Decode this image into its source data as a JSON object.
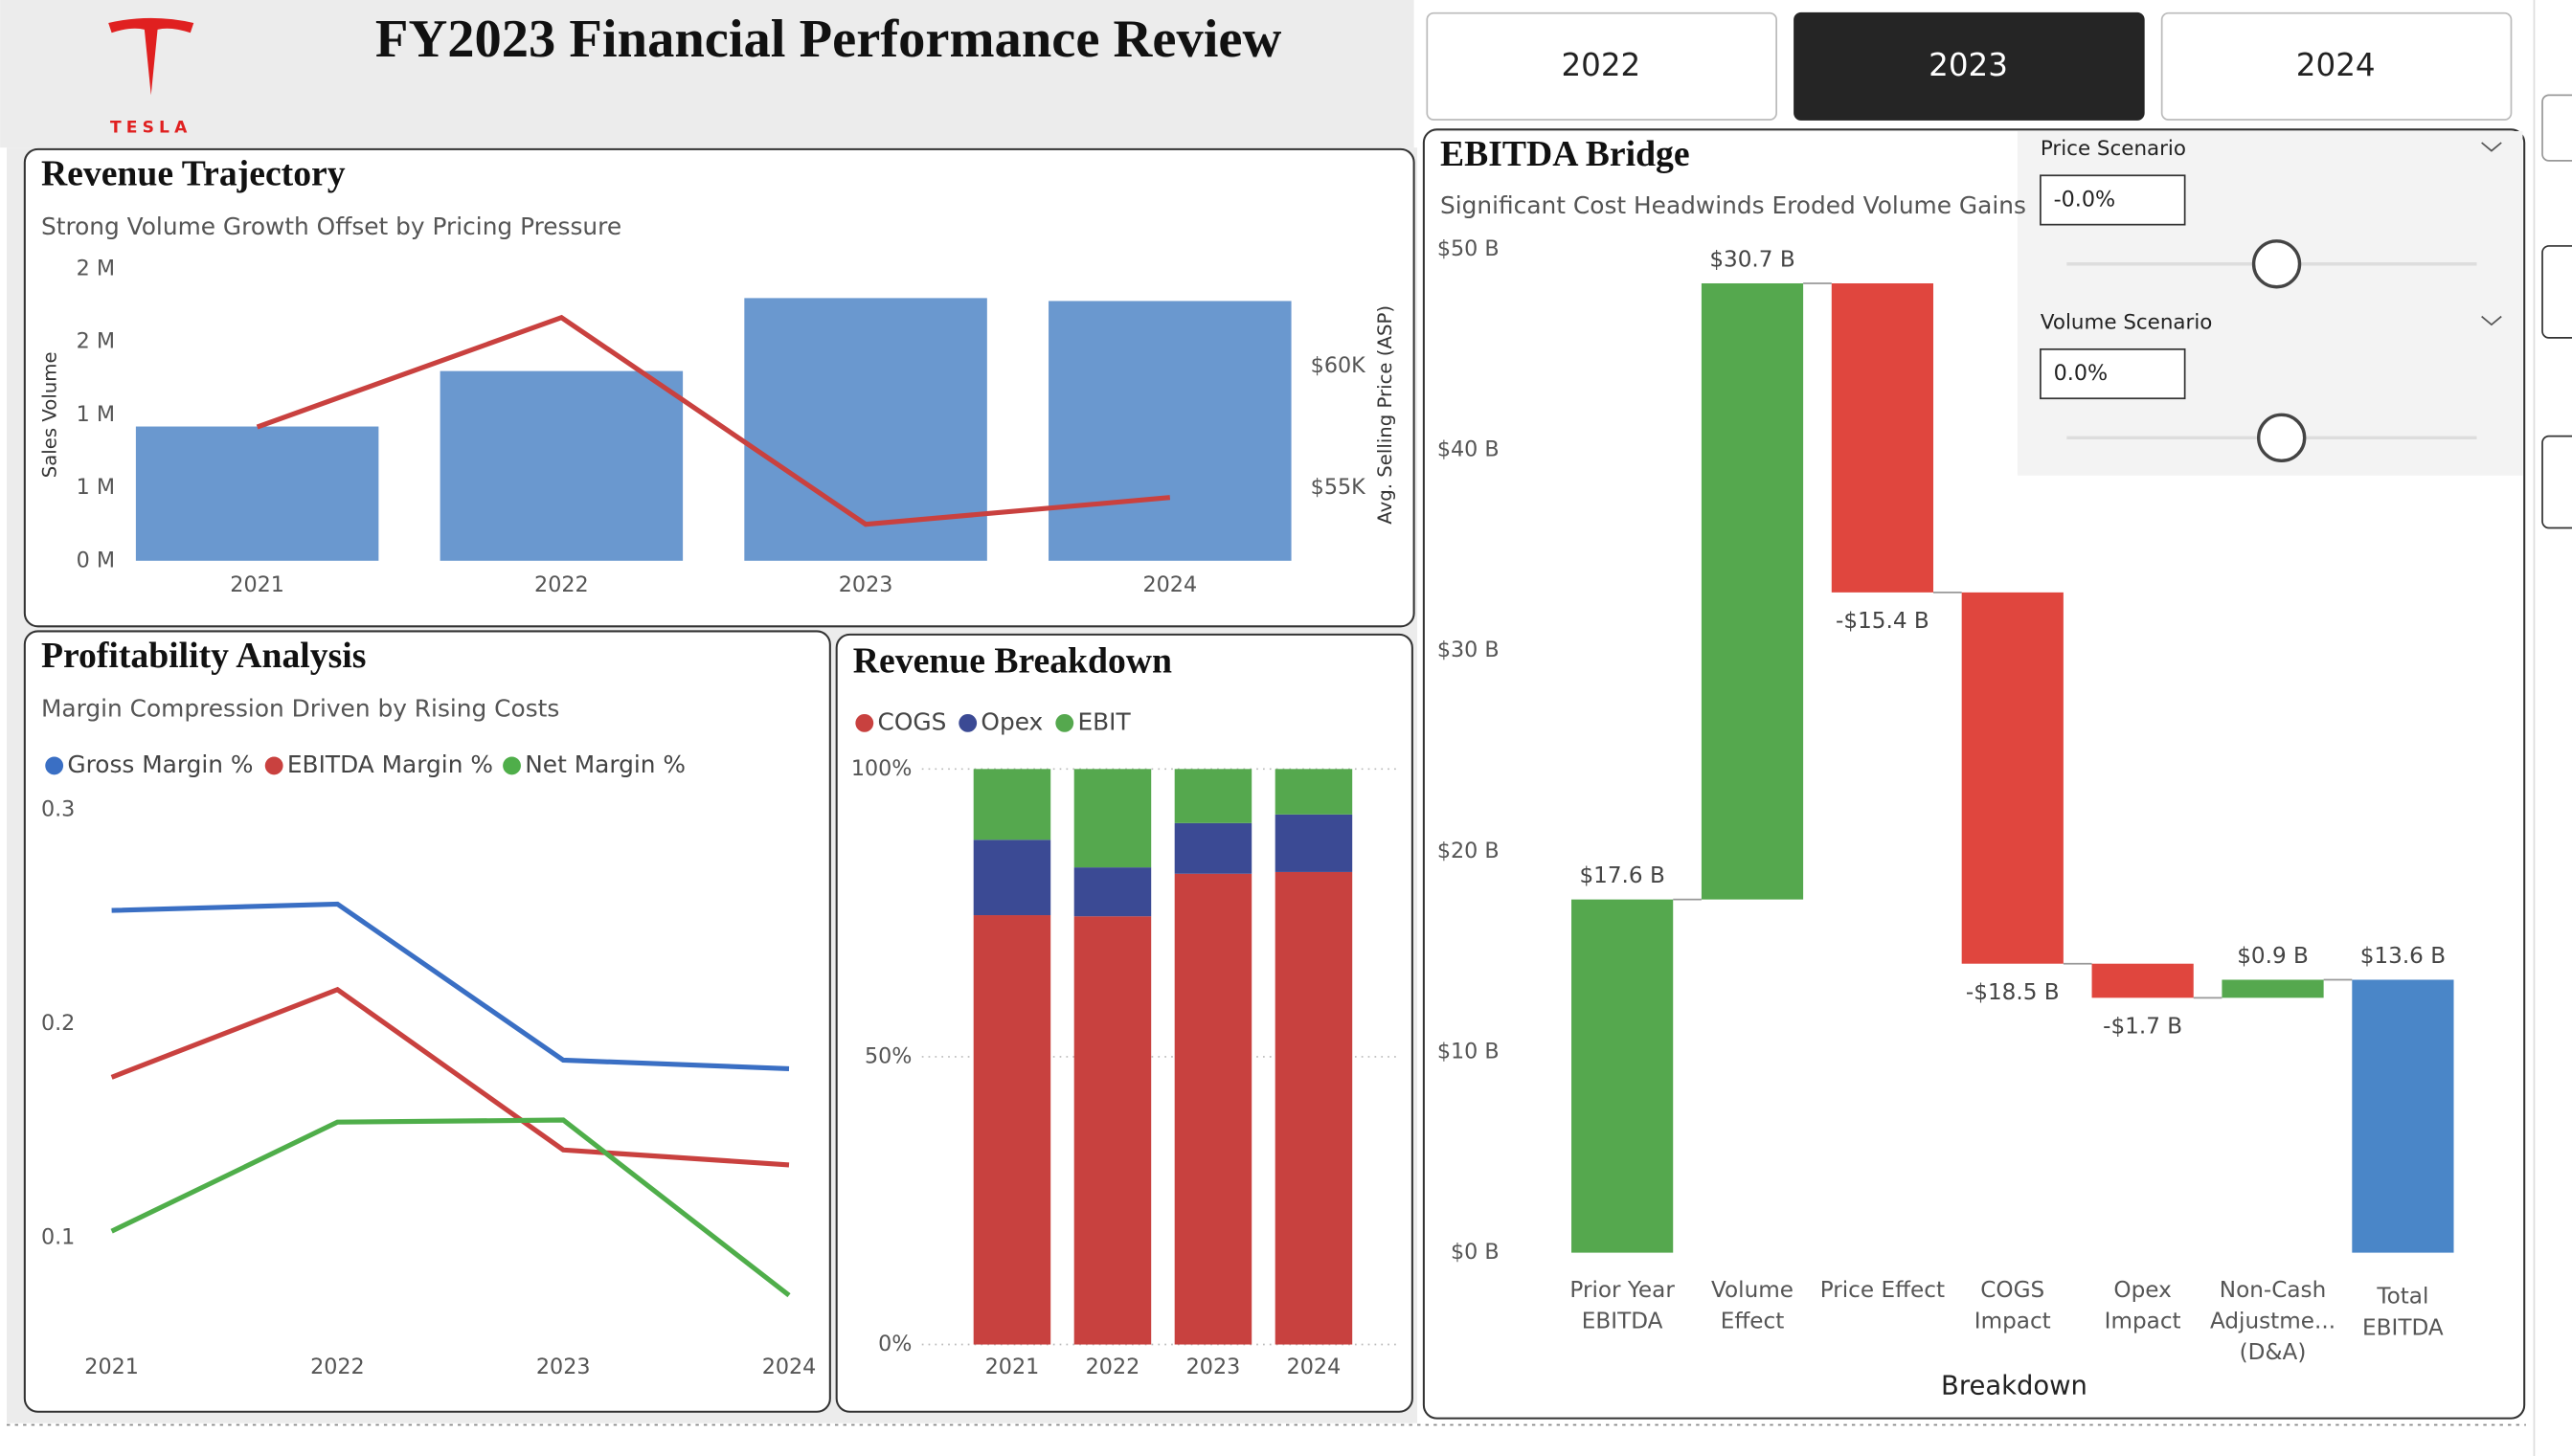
{
  "header": {
    "logo_text": "TESLA",
    "title": "FY2023 Financial Performance Review"
  },
  "year_buttons": {
    "options": [
      "2022",
      "2023",
      "2024"
    ],
    "selected_index": 1
  },
  "scenarios": [
    {
      "label": "Price Scenario",
      "value": "-0.0%"
    },
    {
      "label": "Volume Scenario",
      "value": "0.0%"
    }
  ],
  "chart_data": [
    {
      "type": "bar_line",
      "title": "Revenue Trajectory",
      "subtitle": "Strong Volume Growth Offset by Pricing Pressure",
      "categories": [
        "2021",
        "2022",
        "2023",
        "2024"
      ],
      "series": [
        {
          "type": "bar",
          "color": "#6a98cf",
          "values": [
            0.92,
            1.3,
            1.8,
            1.78
          ]
        },
        {
          "type": "line",
          "axis": "y2",
          "color": "#c9413f",
          "values": [
            57.5,
            62.0,
            53.5,
            54.6
          ]
        }
      ],
      "y_label": "Sales Volume",
      "y2_label": "Avg. Selling Price (ASP)",
      "ylim": [
        0,
        2
      ],
      "yticks": [
        {
          "value": 0,
          "label": "0 M"
        },
        {
          "value": 0.5,
          "label": "1 M"
        },
        {
          "value": 1,
          "label": "1 M"
        },
        {
          "value": 1.5,
          "label": "2 M"
        },
        {
          "value": 2,
          "label": "2 M"
        }
      ],
      "y2lim": [
        52,
        64
      ],
      "y2ticks": [
        {
          "value": 55,
          "label": "$55K"
        },
        {
          "value": 60,
          "label": "$60K"
        }
      ]
    },
    {
      "type": "line",
      "title": "Profitability Analysis",
      "subtitle": "Margin Compression Driven by Rising Costs",
      "categories": [
        "2021",
        "2022",
        "2023",
        "2024"
      ],
      "series": [
        {
          "name": "Gross Margin %",
          "color": "#3a6fc4",
          "values": [
            0.253,
            0.256,
            0.183,
            0.179
          ]
        },
        {
          "name": "EBITDA Margin %",
          "color": "#c9413f",
          "values": [
            0.175,
            0.216,
            0.141,
            0.134
          ]
        },
        {
          "name": "Net Margin %",
          "color": "#4fae4a",
          "values": [
            0.103,
            0.154,
            0.155,
            0.073
          ]
        }
      ],
      "ylim": [
        0.05,
        0.3
      ],
      "yticks": [
        0.1,
        0.2,
        0.3
      ],
      "legend": "top-left"
    },
    {
      "type": "stacked_bar",
      "title": "Revenue Breakdown",
      "categories": [
        "2021",
        "2022",
        "2023",
        "2024"
      ],
      "series": [
        {
          "name": "COGS",
          "color": "#c8413f",
          "values": [
            74.6,
            74.4,
            81.8,
            82.1
          ]
        },
        {
          "name": "Opex",
          "color": "#3b4a94",
          "values": [
            13.1,
            8.5,
            8.8,
            10.0
          ]
        },
        {
          "name": "EBIT",
          "color": "#55a84e",
          "values": [
            12.3,
            17.1,
            9.4,
            7.9
          ]
        }
      ],
      "ylim": [
        0,
        100
      ],
      "yticks": [
        {
          "value": 0,
          "label": "0%"
        },
        {
          "value": 50,
          "label": "50%"
        },
        {
          "value": 100,
          "label": "100%"
        }
      ],
      "grid": true,
      "legend": "top-left"
    },
    {
      "type": "waterfall",
      "title": "EBITDA Bridge",
      "subtitle": "Significant Cost Headwinds Eroded Volume Gains",
      "categories": [
        "Prior Year EBITDA",
        "Volume Effect",
        "Price Effect",
        "COGS Impact",
        "Opex Impact",
        "Non-Cash Adjustme... (D&A)",
        "Total EBITDA"
      ],
      "values": [
        17.6,
        30.7,
        -15.4,
        -18.5,
        -1.7,
        0.9,
        13.6
      ],
      "value_labels": [
        "$17.6 B",
        "$30.7 B",
        "-$15.4 B",
        "-$18.5 B",
        "-$1.7 B",
        "$0.9 B",
        "$13.6 B"
      ],
      "x_label": "Breakdown",
      "ylim": [
        0,
        50
      ],
      "yticks": [
        {
          "value": 0,
          "label": "$0 B"
        },
        {
          "value": 10,
          "label": "$10 B"
        },
        {
          "value": 20,
          "label": "$20 B"
        },
        {
          "value": 30,
          "label": "$30 B"
        },
        {
          "value": 40,
          "label": "$40 B"
        },
        {
          "value": 50,
          "label": "$50 B"
        }
      ],
      "increase_color": "#55a84e",
      "decrease_color": "#e0463e",
      "total_color": "#4a86c8"
    }
  ]
}
